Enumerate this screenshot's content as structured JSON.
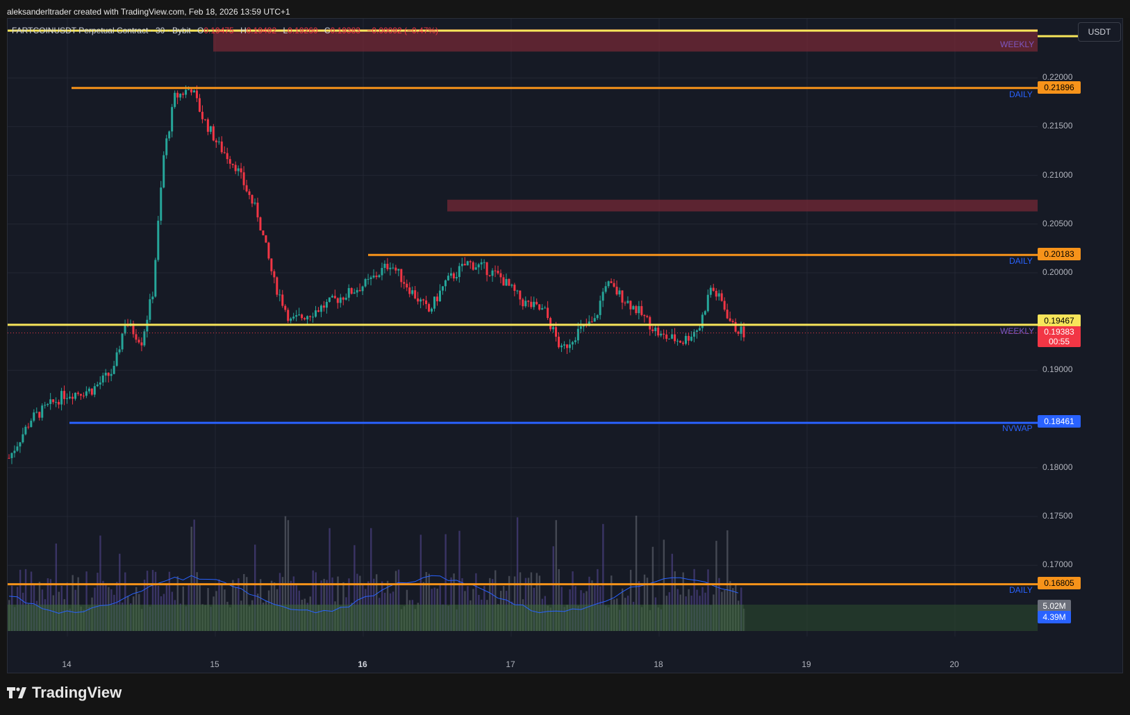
{
  "header": {
    "attribution": "aleksanderltrader created with TradingView.com, Feb 18, 2026 13:59 UTC+1"
  },
  "legend": {
    "symbol": "FARTCOINUSDT Perpetual Contract · 30 · Bybit",
    "o_label": "O",
    "o_value": "0.19475",
    "h_label": "H",
    "h_value": "0.19492",
    "l_label": "L",
    "l_value": "0.19260",
    "c_label": "C",
    "c_value": "0.19383",
    "change": "−0.00092 (−0.47%)"
  },
  "currency": "USDT",
  "price_axis": [
    "0.22000",
    "0.21500",
    "0.21000",
    "0.20500",
    "0.20000",
    "0.19000",
    "0.18000",
    "0.17500",
    "0.17000"
  ],
  "time_axis": [
    "14",
    "15",
    "16",
    "17",
    "18",
    "19",
    "20"
  ],
  "levels": [
    {
      "label": "WEEKLY",
      "price": "0.22485",
      "color": "#f7e55a",
      "label_color": "#7e57c2"
    },
    {
      "label": "DAILY",
      "price": "0.21896",
      "color": "#f7931a",
      "label_color": "#2962ff"
    },
    {
      "label": "DAILY",
      "price": "0.20183",
      "color": "#f7931a",
      "label_color": "#2962ff"
    },
    {
      "label": "WEEKLY",
      "price": "0.19467",
      "color": "#f7e55a",
      "label_color": "#7e57c2"
    },
    {
      "label": "NVWAP",
      "price": "0.18461",
      "color": "#2962ff",
      "label_color": "#2962ff"
    },
    {
      "label": "DAILY",
      "price": "0.16805",
      "color": "#f7931a",
      "label_color": "#2962ff"
    }
  ],
  "price_tags": {
    "daily_top": "0.21896",
    "daily_mid": "0.20183",
    "weekly_mid": "0.19467",
    "last": "0.19383",
    "countdown": "00:55",
    "nvwap": "0.18461",
    "daily_low": "0.16805",
    "volume": "5.02M",
    "volume_ma": "4.39M"
  },
  "branding": {
    "logo_text": "TradingView"
  },
  "colors": {
    "up": "#26a69a",
    "down": "#f23645",
    "background": "#161a25",
    "weekly": "#f7e55a",
    "daily": "#f7931a",
    "nvwap": "#2962ff",
    "supply_zone": "#7a2a36"
  }
}
